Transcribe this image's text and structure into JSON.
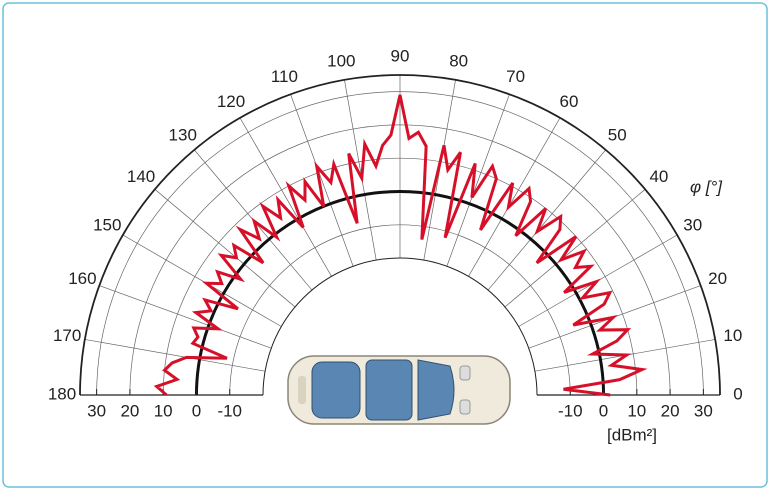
{
  "chart_data": {
    "type": "polar",
    "theta_label": "φ [°]",
    "r_label": "[dBm²]",
    "x": [
      0,
      2,
      4,
      6,
      8,
      10,
      12,
      14,
      16,
      18,
      20,
      22,
      24,
      26,
      28,
      30,
      32,
      34,
      36,
      38,
      40,
      42,
      44,
      46,
      48,
      50,
      52,
      54,
      56,
      58,
      60,
      62,
      64,
      66,
      68,
      70,
      72,
      74,
      76,
      78,
      80,
      82,
      84,
      86,
      88,
      90,
      92,
      94,
      96,
      98,
      100,
      102,
      104,
      106,
      108,
      110,
      112,
      114,
      116,
      118,
      120,
      122,
      124,
      126,
      128,
      130,
      132,
      134,
      136,
      138,
      140,
      142,
      144,
      146,
      148,
      150,
      152,
      154,
      156,
      158,
      160,
      162,
      164,
      166,
      168,
      170,
      172,
      174,
      176,
      178,
      180
    ],
    "values": [
      2,
      -12,
      5,
      12,
      3,
      8,
      -2,
      6,
      10,
      2,
      7,
      -5,
      6,
      9,
      1,
      7,
      -3,
      8,
      4,
      9,
      2,
      10,
      -4,
      8,
      11,
      3,
      10,
      -2,
      9,
      12,
      4,
      11,
      -6,
      10,
      13,
      2,
      12,
      -12,
      14,
      8,
      15,
      -14,
      14,
      18,
      16,
      29,
      17,
      14,
      8,
      15,
      5,
      13,
      -8,
      11,
      6,
      12,
      0,
      9,
      4,
      10,
      -3,
      8,
      3,
      9,
      -1,
      7,
      2,
      8,
      -4,
      6,
      3,
      7,
      -2,
      5,
      2,
      6,
      -6,
      4,
      1,
      5,
      -3,
      4,
      2,
      3,
      -8,
      4,
      8,
      10,
      6,
      12,
      9
    ],
    "color": "#d7102a",
    "rlim": [
      -20,
      35
    ],
    "rticks": [
      -10,
      0,
      10,
      20,
      30
    ],
    "thetalim": [
      0,
      180
    ],
    "thetaticks": [
      0,
      10,
      20,
      30,
      40,
      50,
      60,
      70,
      80,
      90,
      100,
      110,
      120,
      130,
      140,
      150,
      160,
      170,
      180
    ],
    "highlight_r": 0
  }
}
